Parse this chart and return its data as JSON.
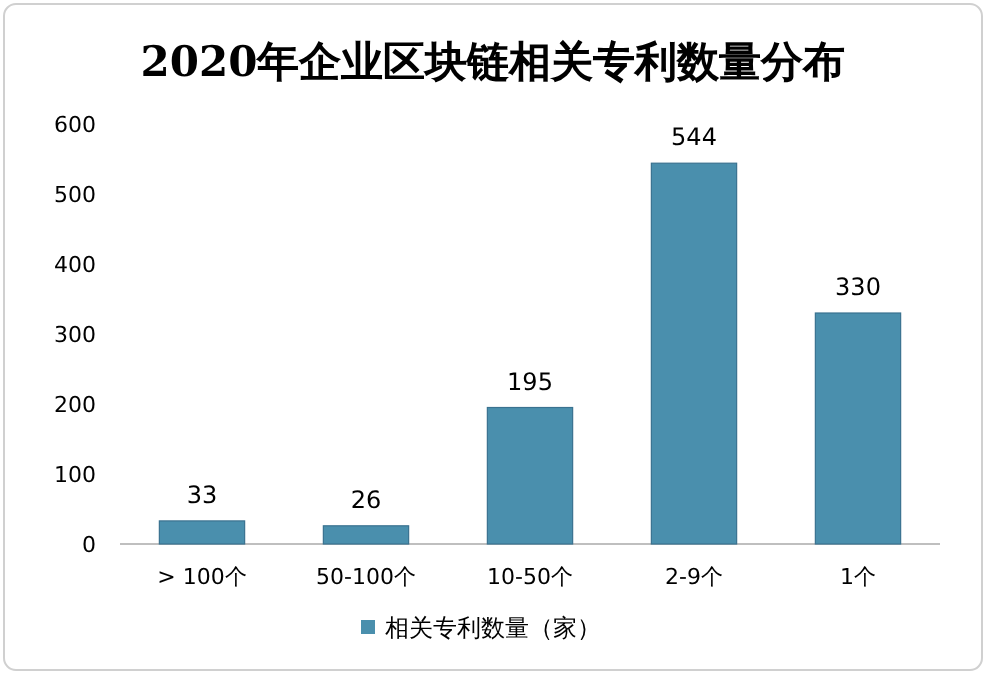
{
  "chart_data": {
    "type": "bar",
    "title": "2020年企业区块链相关专利数量分布",
    "categories": [
      "> 100个",
      "50-100个",
      "10-50个",
      "2-9个",
      "1个"
    ],
    "series": [
      {
        "name": "相关专利数量（家）",
        "color": "#4a8fad",
        "values": [
          33,
          26,
          195,
          544,
          330
        ]
      }
    ],
    "ylim": [
      0,
      600
    ],
    "yticks": [
      0,
      100,
      200,
      300,
      400,
      500,
      600
    ],
    "data_labels": true,
    "legend": "bottom"
  }
}
